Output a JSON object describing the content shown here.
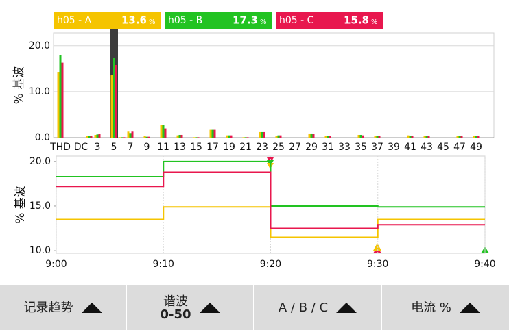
{
  "chart_data": [
    {
      "type": "bar",
      "ylabel": "% 基波",
      "unit": "%",
      "categories": [
        "THD",
        "DC",
        null,
        "3",
        null,
        "5",
        null,
        "7",
        null,
        "9",
        null,
        "11",
        null,
        "13",
        null,
        "15",
        null,
        "17",
        null,
        "19",
        null,
        "21",
        null,
        "23",
        null,
        "25",
        null,
        "27",
        null,
        "29",
        null,
        "31",
        null,
        "33",
        null,
        "35",
        null,
        "37",
        null,
        "39",
        null,
        "41",
        null,
        "43",
        null,
        "45",
        null,
        "47",
        null,
        "49",
        null
      ],
      "series": [
        {
          "name": "h05 - A",
          "color": "#f5c400",
          "values": [
            14.3,
            0,
            0.4,
            0.6,
            0,
            13.6,
            0.1,
            1.3,
            0,
            0.3,
            0,
            2.7,
            0,
            0.5,
            0,
            0.1,
            0,
            1.7,
            0,
            0.5,
            0,
            0.1,
            0,
            1.2,
            0,
            0.4,
            0,
            0,
            0,
            0.9,
            0,
            0.4,
            0,
            0,
            0,
            0.6,
            0,
            0.4,
            0,
            0,
            0,
            0.5,
            0,
            0.3,
            0,
            0,
            0,
            0.4,
            0,
            0.3,
            0
          ]
        },
        {
          "name": "h05 - B",
          "color": "#22c322",
          "values": [
            17.9,
            0,
            0.4,
            0.7,
            0,
            17.3,
            0.1,
            1.0,
            0,
            0.2,
            0,
            2.8,
            0,
            0.6,
            0,
            0.1,
            0,
            1.7,
            0,
            0.5,
            0,
            0.1,
            0,
            1.2,
            0,
            0.5,
            0,
            0,
            0,
            0.9,
            0,
            0.4,
            0,
            0,
            0,
            0.6,
            0,
            0.3,
            0,
            0,
            0,
            0.4,
            0,
            0.3,
            0,
            0,
            0,
            0.4,
            0,
            0.3,
            0
          ]
        },
        {
          "name": "h05 - C",
          "color": "#e8174e",
          "values": [
            16.3,
            0,
            0.4,
            0.8,
            0,
            15.8,
            0.1,
            1.3,
            0,
            0.2,
            0,
            2.0,
            0,
            0.6,
            0,
            0.1,
            0,
            1.7,
            0,
            0.5,
            0,
            0.1,
            0,
            1.2,
            0,
            0.5,
            0,
            0,
            0,
            0.8,
            0,
            0.4,
            0,
            0,
            0,
            0.5,
            0,
            0.4,
            0,
            0,
            0,
            0.4,
            0,
            0.3,
            0,
            0,
            0,
            0.4,
            0,
            0.3,
            0
          ]
        }
      ],
      "selected_category": 5,
      "ylim": [
        0,
        22.8
      ],
      "yticks": [
        {
          "value": 0,
          "label": "0.0"
        },
        {
          "value": 10,
          "label": "10.0"
        },
        {
          "value": 20,
          "label": "20.0"
        }
      ],
      "grid": true
    },
    {
      "type": "line",
      "ylabel": "% 基波",
      "step": true,
      "x": [
        "9:00",
        "9:10",
        "9:20",
        "9:30",
        "9:40"
      ],
      "series": [
        {
          "color": "#22c322",
          "values": [
            18.3,
            20.0,
            15.0,
            14.9,
            14.9
          ]
        },
        {
          "color": "#f5c400",
          "values": [
            13.5,
            14.9,
            11.5,
            13.5,
            13.5
          ]
        },
        {
          "color": "#e8174e",
          "values": [
            17.2,
            18.8,
            12.5,
            12.9,
            12.9
          ]
        }
      ],
      "xlim": [
        "9:00",
        "9:40"
      ],
      "xticks": [
        "9:00",
        "9:10",
        "9:20",
        "9:30",
        "9:40"
      ],
      "ylim": [
        9.7,
        20.6
      ],
      "yticks": [
        {
          "value": 10,
          "label": "10.0"
        },
        {
          "value": 15,
          "label": "15.0"
        },
        {
          "value": 20,
          "label": "20.0"
        }
      ],
      "grid": true
    }
  ],
  "buttons": [
    {
      "label": "记录趋势"
    },
    {
      "label": "谐波",
      "sub": "0-50"
    },
    {
      "label": "A / B / C"
    },
    {
      "label": "电流 %"
    }
  ]
}
